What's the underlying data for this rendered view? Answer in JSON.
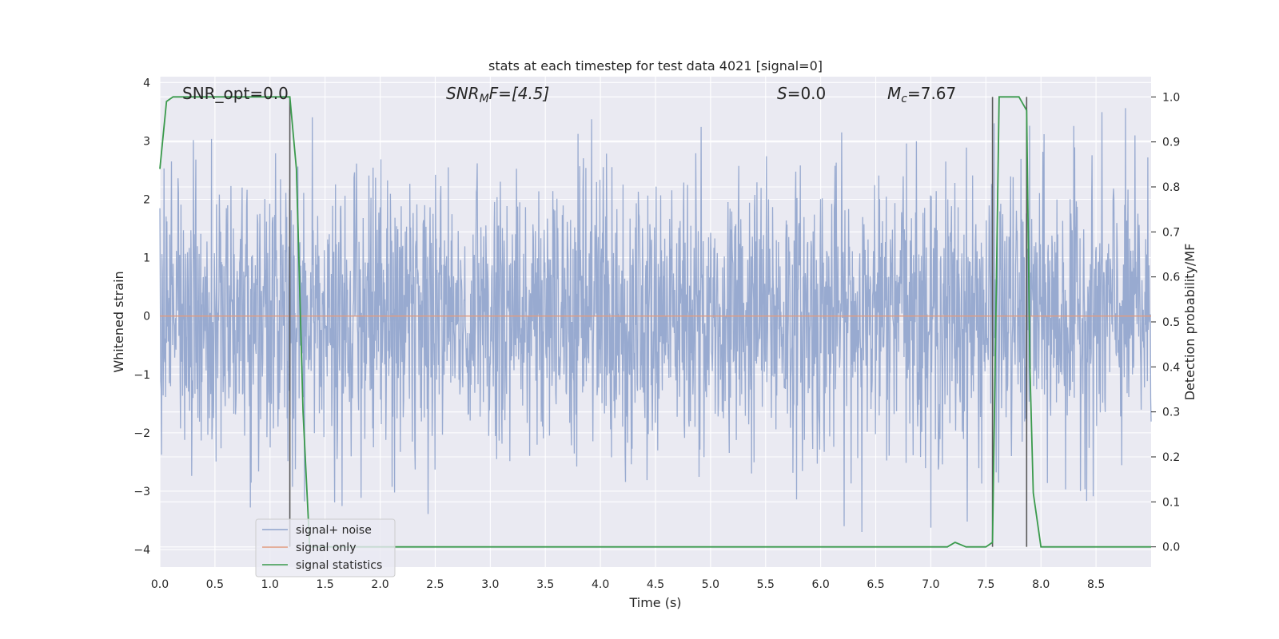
{
  "chart_data": {
    "type": "line",
    "title": "stats at each timestep for test data 4021 [signal=0]",
    "xlabel": "Time (s)",
    "ylabel": "Whitened strain",
    "y2label": "Detection probability/MF",
    "xlim": [
      0,
      9
    ],
    "ylim": [
      -4.3,
      4.1
    ],
    "y2lim": [
      -0.045,
      1.045
    ],
    "x_ticks": [
      0.0,
      0.5,
      1.0,
      1.5,
      2.0,
      2.5,
      3.0,
      3.5,
      4.0,
      4.5,
      5.0,
      5.5,
      6.0,
      6.5,
      7.0,
      7.5,
      8.0,
      8.5
    ],
    "x_tick_labels": [
      "0.0",
      "0.5",
      "1.0",
      "1.5",
      "2.0",
      "2.5",
      "3.0",
      "3.5",
      "4.0",
      "4.5",
      "5.0",
      "5.5",
      "6.0",
      "6.5",
      "7.0",
      "7.5",
      "8.0",
      "8.5"
    ],
    "y_ticks": [
      -4,
      -3,
      -2,
      -1,
      0,
      1,
      2,
      3,
      4
    ],
    "y_tick_labels": [
      "−4",
      "−3",
      "−2",
      "−1",
      "0",
      "1",
      "2",
      "3",
      "4"
    ],
    "y2_ticks": [
      0.0,
      0.1,
      0.2,
      0.3,
      0.4,
      0.5,
      0.6,
      0.7,
      0.8,
      0.9,
      1.0
    ],
    "y2_tick_labels": [
      "0.0",
      "0.1",
      "0.2",
      "0.3",
      "0.4",
      "0.5",
      "0.6",
      "0.7",
      "0.8",
      "0.9",
      "1.0"
    ],
    "grid": true,
    "legend_position": "lower-left",
    "annotations": {
      "snr_opt": "SNR_opt=0.0",
      "snr_mf_sym": "SNR",
      "snr_mf_sub": "M",
      "snr_mf_rest": "F=[4.5]",
      "s_sym": "S",
      "s_rest": "=0.0",
      "mc_sym": "M",
      "mc_sub": "c",
      "mc_rest": "=7.67"
    },
    "series": [
      {
        "name": "signal+ noise",
        "color": "#8fa3cc",
        "axis": "left",
        "envelope_seed": 4021,
        "x_range": [
          0,
          9
        ],
        "typical_amplitude": 1.2,
        "peak_range": [
          -3.75,
          3.6
        ]
      },
      {
        "name": "signal only",
        "color": "#e19b7e",
        "axis": "left",
        "x": [
          0,
          9
        ],
        "y": [
          0,
          0
        ]
      },
      {
        "name": "signal statistics",
        "color": "#3a9a4c",
        "axis": "right",
        "x": [
          0.0,
          0.06,
          0.12,
          0.2,
          0.5,
          1.0,
          1.18,
          1.24,
          1.3,
          1.36,
          1.5,
          2.0,
          3.0,
          4.0,
          5.0,
          6.0,
          7.0,
          7.15,
          7.22,
          7.27,
          7.32,
          7.5,
          7.56,
          7.62,
          7.75,
          7.8,
          7.87,
          7.9,
          7.93,
          8.0,
          8.5,
          9.0
        ],
        "y": [
          0.84,
          0.99,
          1.0,
          1.0,
          1.0,
          1.0,
          1.0,
          0.84,
          0.3,
          0.0,
          0.0,
          0.0,
          0.0,
          0.0,
          0.0,
          0.0,
          0.0,
          0.0,
          0.01,
          0.005,
          0.0,
          0.0,
          0.01,
          1.0,
          1.0,
          1.0,
          0.97,
          0.4,
          0.12,
          0.0,
          0.0,
          0.0
        ]
      }
    ],
    "vertical_lines": [
      {
        "x": 1.18,
        "y_from": 0.0,
        "y_to": 1.0
      },
      {
        "x": 7.56,
        "y_from": 0.0,
        "y_to": 1.0
      },
      {
        "x": 7.87,
        "y_from": 0.0,
        "y_to": 1.0
      }
    ],
    "colors": {
      "plot_bg": "#eaeaf2",
      "grid": "#ffffff",
      "vline": "#595959"
    }
  }
}
